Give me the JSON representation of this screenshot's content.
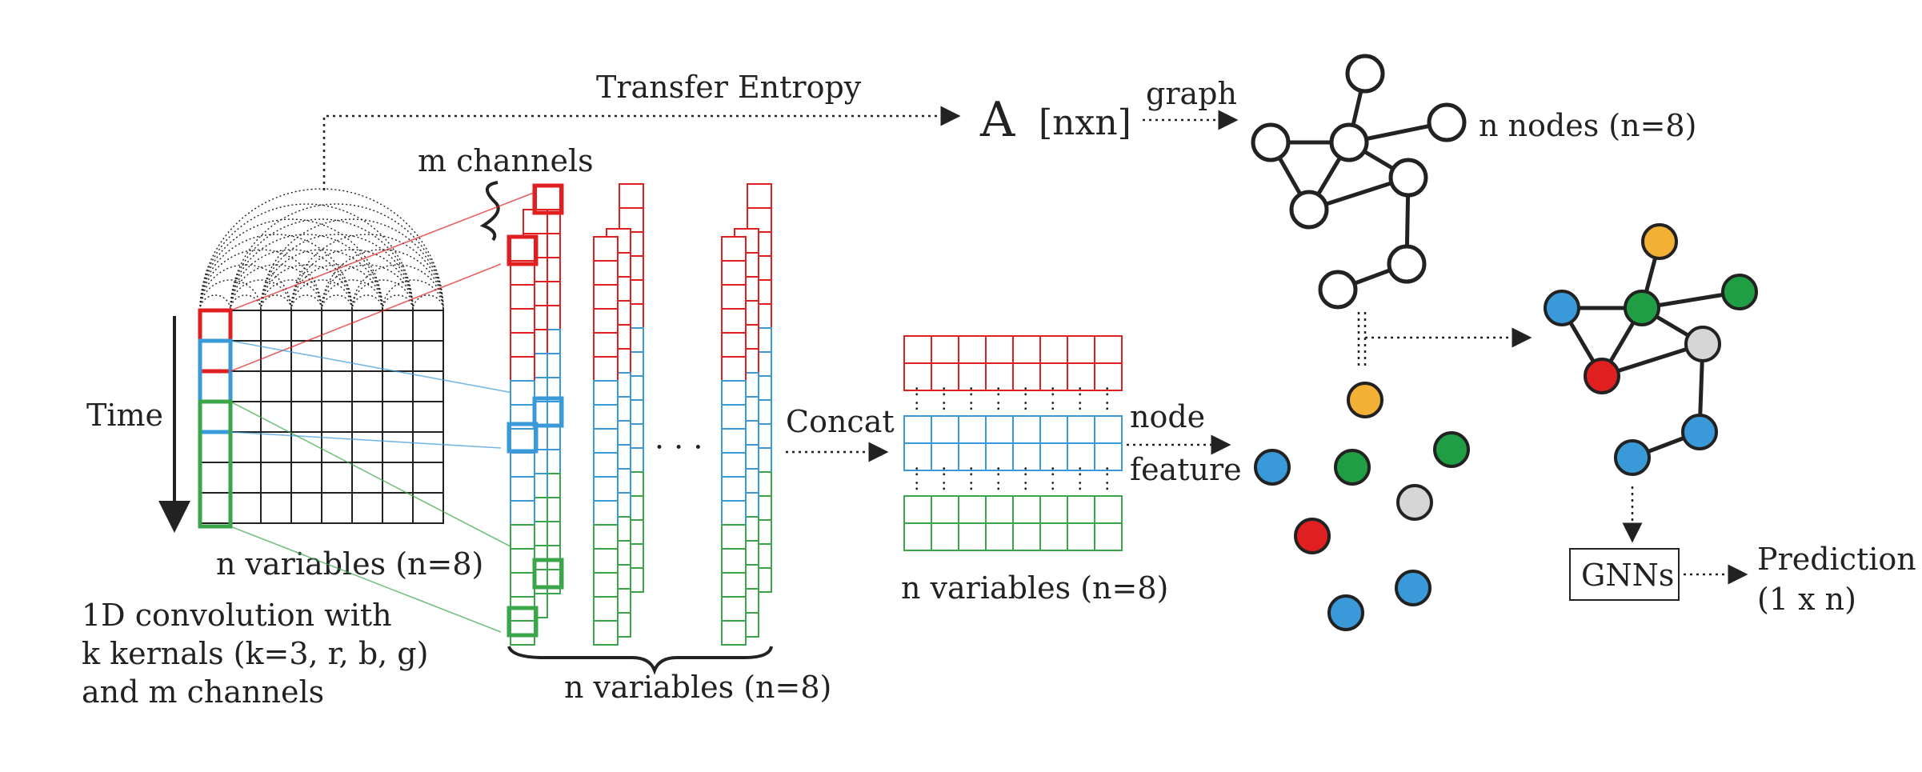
{
  "labels": {
    "transfer_entropy": "Transfer   Entropy",
    "adj_a": "A",
    "adj_dim": "[nxn]",
    "graph": "graph",
    "n_nodes": "n nodes (n=8)",
    "m_channels": "m channels",
    "time": "Time",
    "n_vars_grid": "n variables (n=8)",
    "conv_line1": "1D convolution with",
    "conv_line2": "k kernals (k=3, r, b, g)",
    "conv_line3": "and m channels",
    "n_vars_channels": "n variables (n=8)",
    "ellipsis": "· · ·",
    "concat": "Concat",
    "n_vars_features": "n variables (n=8)",
    "node": "node",
    "feature": "feature",
    "gnns": "GNNs",
    "prediction": "Prediction",
    "prediction_dim": "(1 x n)"
  },
  "colors": {
    "red": "#e02020",
    "blue": "#3a9ad9",
    "green": "#3aa64a",
    "yellow": "#f2b035",
    "dark_green": "#1f9e44",
    "light_gray": "#d6d6d6",
    "grid_line": "#222222"
  }
}
